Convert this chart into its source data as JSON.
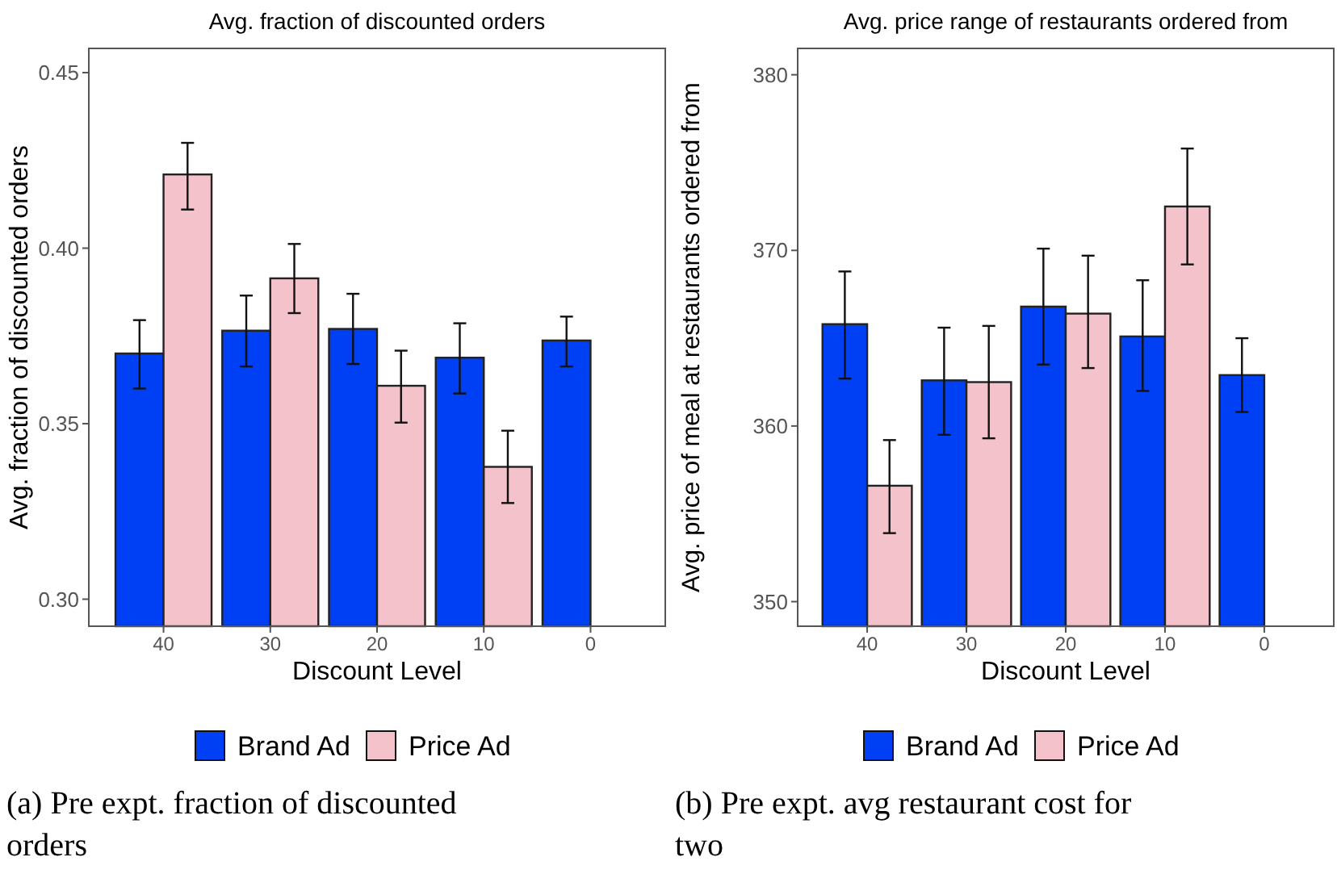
{
  "chart_data": [
    {
      "type": "bar",
      "title": "Avg. fraction of discounted orders",
      "xlabel": "Discount Level",
      "ylabel": "Avg. fraction of discounted orders",
      "categories": [
        "40",
        "30",
        "20",
        "10",
        "0"
      ],
      "series": [
        {
          "name": "Brand Ad",
          "color": "#0040f5",
          "values": [
            0.37,
            0.3765,
            0.377,
            0.3688,
            0.3737
          ],
          "errors": [
            [
              0.36,
              0.3795
            ],
            [
              0.3663,
              0.3865
            ],
            [
              0.367,
              0.387
            ],
            [
              0.3586,
              0.3786
            ],
            [
              0.3663,
              0.3805
            ]
          ]
        },
        {
          "name": "Price Ad",
          "color": "#f4c2cb",
          "values": [
            0.421,
            0.3914,
            0.3608,
            0.3377,
            null
          ],
          "errors": [
            [
              0.411,
              0.43
            ],
            [
              0.3815,
              0.4012
            ],
            [
              0.3503,
              0.3708
            ],
            [
              0.3274,
              0.348
            ],
            null
          ]
        }
      ],
      "ylim": [
        0.2923,
        0.4569
      ],
      "yticks": [
        {
          "value": 0.3,
          "label": "0.30"
        },
        {
          "value": 0.35,
          "label": "0.35"
        },
        {
          "value": 0.4,
          "label": "0.40"
        },
        {
          "value": 0.45,
          "label": "0.45"
        }
      ],
      "legend": "bottom",
      "annotations": [
        "(a) Pre expt. fraction of discounted orders"
      ]
    },
    {
      "type": "bar",
      "title": "Avg. price range of restaurants ordered from",
      "xlabel": "Discount Level",
      "ylabel": "Avg. price of meal at restaurants ordered from",
      "categories": [
        "40",
        "30",
        "20",
        "10",
        "0"
      ],
      "series": [
        {
          "name": "Brand Ad",
          "color": "#0040f5",
          "values": [
            365.8,
            362.6,
            366.8,
            365.1,
            362.9
          ],
          "errors": [
            [
              362.7,
              368.8
            ],
            [
              359.5,
              365.6
            ],
            [
              363.5,
              370.1
            ],
            [
              362.0,
              368.3
            ],
            [
              360.8,
              365.0
            ]
          ]
        },
        {
          "name": "Price Ad",
          "color": "#f4c2cb",
          "values": [
            356.6,
            362.5,
            366.4,
            372.5,
            null
          ],
          "errors": [
            [
              353.9,
              359.2
            ],
            [
              359.3,
              365.7
            ],
            [
              363.3,
              369.7
            ],
            [
              369.2,
              375.8
            ],
            null
          ]
        }
      ],
      "ylim": [
        348.6,
        381.5
      ],
      "yticks": [
        350,
        360,
        370,
        380
      ],
      "legend": "bottom",
      "annotations": [
        "(b) Pre expt. avg restaurant cost for two"
      ]
    }
  ]
}
